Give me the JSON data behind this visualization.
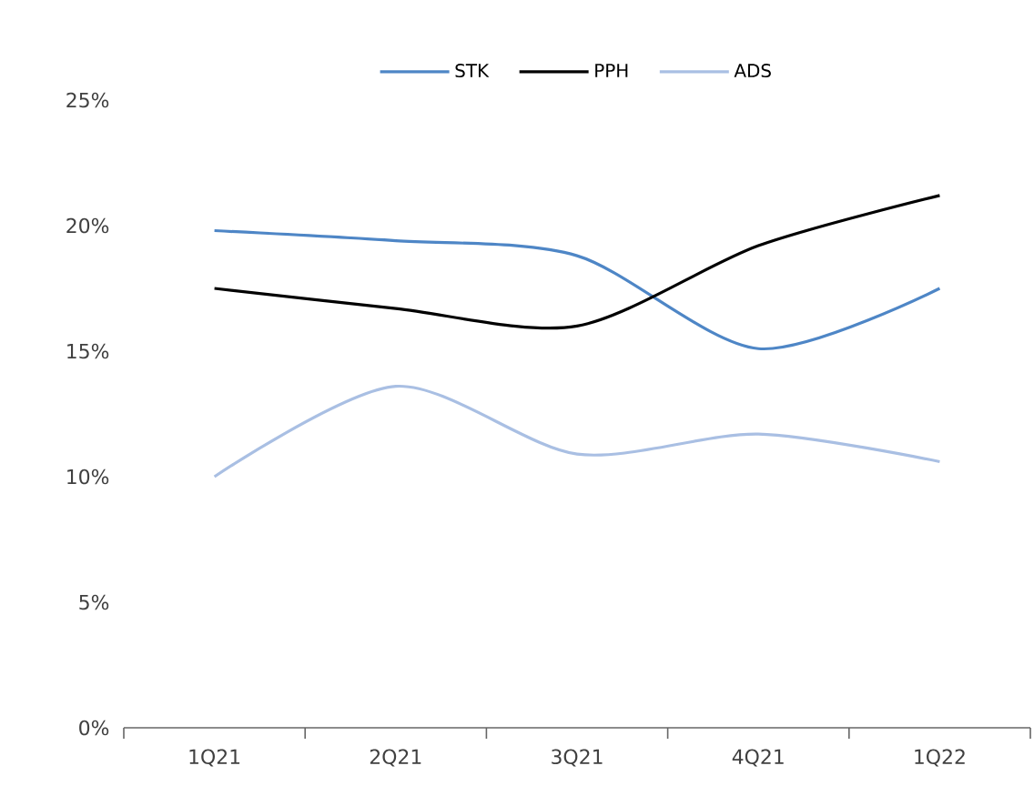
{
  "chart_data": {
    "type": "line",
    "categories": [
      "1Q21",
      "2Q21",
      "3Q21",
      "4Q21",
      "1Q22"
    ],
    "series": [
      {
        "name": "STK",
        "color": "#4e86c6",
        "values": [
          19.8,
          19.4,
          18.8,
          15.1,
          17.5
        ]
      },
      {
        "name": "PPH",
        "color": "#000000",
        "values": [
          17.5,
          16.7,
          16.0,
          19.2,
          21.2
        ]
      },
      {
        "name": "ADS",
        "color": "#a9bfe3",
        "values": [
          10.0,
          13.6,
          10.9,
          11.7,
          10.6
        ]
      }
    ],
    "ylim": [
      0,
      25
    ],
    "yticks": [
      {
        "value": 0,
        "label": "0%"
      },
      {
        "value": 5,
        "label": "5%"
      },
      {
        "value": 10,
        "label": "10%"
      },
      {
        "value": 15,
        "label": "15%"
      },
      {
        "value": 20,
        "label": "20%"
      },
      {
        "value": 25,
        "label": "25%"
      }
    ],
    "legend": "top",
    "grid": false
  }
}
